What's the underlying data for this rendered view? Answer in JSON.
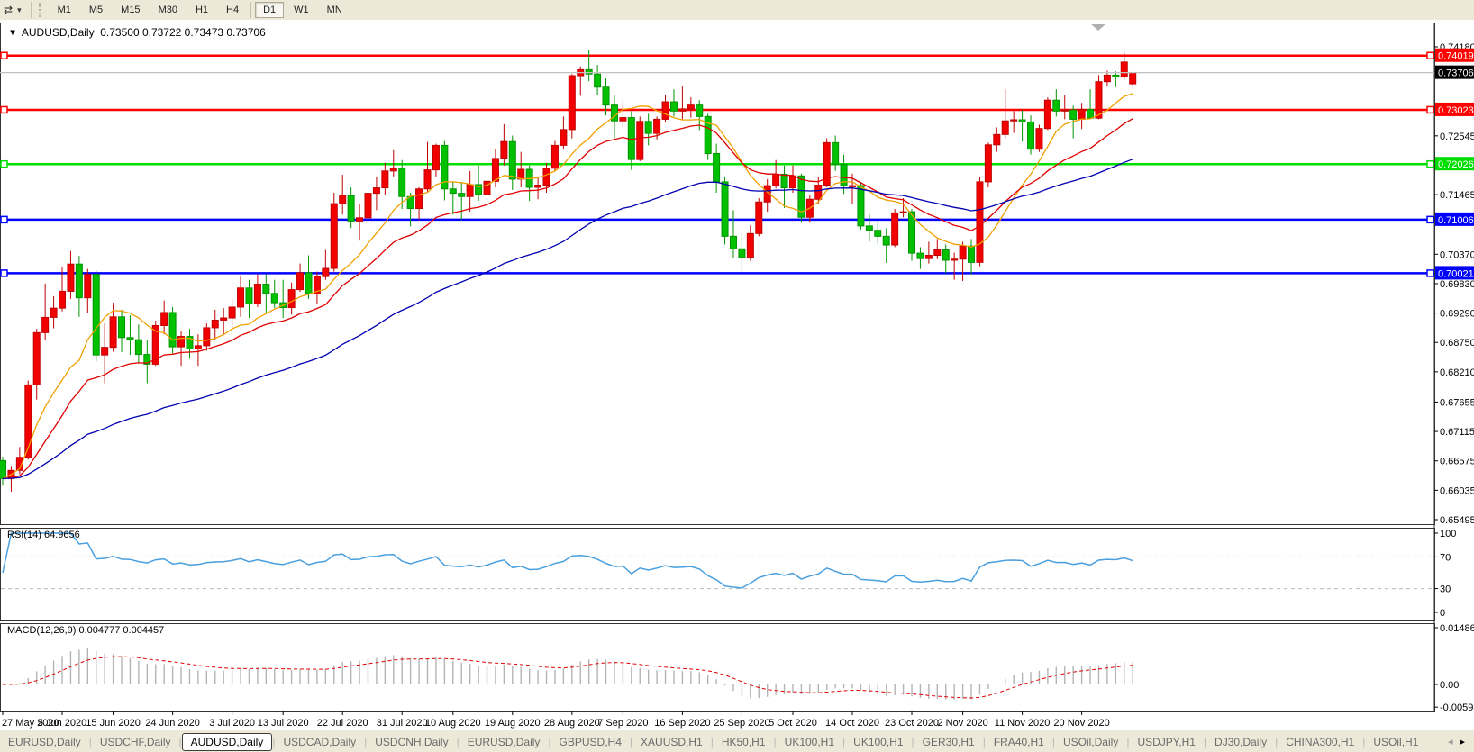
{
  "toolbar": {
    "cursor_tool": "⇄",
    "dropdown": "▾",
    "timeframes": [
      {
        "label": "M1",
        "active": false
      },
      {
        "label": "M5",
        "active": false
      },
      {
        "label": "M15",
        "active": false
      },
      {
        "label": "M30",
        "active": false
      },
      {
        "label": "H1",
        "active": false
      },
      {
        "label": "H4",
        "active": false
      },
      {
        "label": "D1",
        "active": true
      },
      {
        "label": "W1",
        "active": false
      },
      {
        "label": "MN",
        "active": false
      }
    ]
  },
  "chart": {
    "title_triangle": "▼",
    "title_text": "AUDUSD,Daily  0.73500 0.73722 0.73473 0.73706",
    "rsi_label": "RSI(14) 64.9656",
    "macd_label": "MACD(12,26,9) 0.004777 0.004457"
  },
  "colors": {
    "bull_body": "#f20000",
    "bull_wick": "#c00000",
    "bear_body": "#00c000",
    "bear_wick": "#009400",
    "ma_fast": "#f0a000",
    "ma_mid": "#e00000",
    "ma_slow": "#0000b0",
    "level_red": "#ff0000",
    "level_green": "#00dd00",
    "level_blue": "#0000ff",
    "current_line": "#c0c0c0",
    "current_label_bg": "#000000",
    "rsi_line": "#4a9fdf",
    "rsi_grid": "#b8b8b8",
    "macd_hist": "#b4b4b4",
    "macd_signal": "#e00000",
    "panel_border": "#333333"
  },
  "chart_data": {
    "type": "candlestick",
    "symbol": "AUDUSD",
    "timeframe": "Daily",
    "ohlc_current": {
      "open": 0.735,
      "high": 0.73722,
      "low": 0.73473,
      "close": 0.73706
    },
    "current_price": "0.73706",
    "ylim": [
      0.65495,
      0.7418
    ],
    "price_ticks": [
      "0.74180",
      "0.72545",
      "0.71465",
      "0.70370",
      "0.69830",
      "0.69290",
      "0.68750",
      "0.68210",
      "0.67655",
      "0.67115",
      "0.66575",
      "0.66035",
      "0.65495"
    ],
    "levels": [
      {
        "value": "0.74019",
        "price": 0.74019,
        "color": "#ff0000",
        "text_color": "#ffffff",
        "role": "resistance"
      },
      {
        "value": "0.73023",
        "price": 0.73023,
        "color": "#ff0000",
        "text_color": "#ffffff",
        "role": "resistance"
      },
      {
        "value": "0.72026",
        "price": 0.72026,
        "color": "#00dd00",
        "text_color": "#ffffff",
        "role": "support"
      },
      {
        "value": "0.71006",
        "price": 0.71006,
        "color": "#0000ff",
        "text_color": "#ffffff",
        "role": "support"
      },
      {
        "value": "0.70021",
        "price": 0.70021,
        "color": "#0000ff",
        "text_color": "#ffffff",
        "role": "support"
      }
    ],
    "date_labels": [
      {
        "label": "27 May 2020",
        "index": 0
      },
      {
        "label": "5 Jun 2020",
        "index": 7
      },
      {
        "label": "15 Jun 2020",
        "index": 13
      },
      {
        "label": "24 Jun 2020",
        "index": 20
      },
      {
        "label": "3 Jul 2020",
        "index": 27
      },
      {
        "label": "13 Jul 2020",
        "index": 33
      },
      {
        "label": "22 Jul 2020",
        "index": 40
      },
      {
        "label": "31 Jul 2020",
        "index": 47
      },
      {
        "label": "10 Aug 2020",
        "index": 53
      },
      {
        "label": "19 Aug 2020",
        "index": 60
      },
      {
        "label": "28 Aug 2020",
        "index": 67
      },
      {
        "label": "7 Sep 2020",
        "index": 73
      },
      {
        "label": "16 Sep 2020",
        "index": 80
      },
      {
        "label": "25 Sep 2020",
        "index": 87
      },
      {
        "label": "5 Oct 2020",
        "index": 93
      },
      {
        "label": "14 Oct 2020",
        "index": 100
      },
      {
        "label": "23 Oct 2020",
        "index": 107
      },
      {
        "label": "2 Nov 2020",
        "index": 113
      },
      {
        "label": "11 Nov 2020",
        "index": 120
      },
      {
        "label": "20 Nov 2020",
        "index": 127
      }
    ],
    "moving_averages": [
      {
        "name": "fast",
        "period": 10,
        "method": "sma",
        "color": "#f0a000"
      },
      {
        "name": "mid",
        "period": 20,
        "method": "ema",
        "color": "#e00000"
      },
      {
        "name": "slow",
        "period": 55,
        "method": "ema",
        "color": "#0000b0"
      }
    ],
    "rsi": {
      "period": 14,
      "current": 64.9656,
      "levels": [
        70,
        30
      ],
      "range": [
        0,
        100
      ],
      "axis_labels": [
        "100",
        "70",
        "30",
        "0"
      ]
    },
    "macd": {
      "fast": 12,
      "slow": 26,
      "signal": 9,
      "current_main": 0.004777,
      "current_signal": 0.004457,
      "axis_labels": [
        "0.014861",
        "0.00",
        "-0.005938"
      ],
      "axis_values": [
        0.014861,
        0.0,
        -0.005938
      ]
    },
    "candles": [
      [
        0.6658,
        0.6665,
        0.6612,
        0.6625
      ],
      [
        0.6625,
        0.6648,
        0.6601,
        0.664
      ],
      [
        0.664,
        0.6683,
        0.6633,
        0.6664
      ],
      [
        0.6664,
        0.6805,
        0.666,
        0.6797
      ],
      [
        0.6797,
        0.69,
        0.677,
        0.6893
      ],
      [
        0.6893,
        0.6983,
        0.688,
        0.6921
      ],
      [
        0.6921,
        0.696,
        0.6901,
        0.6938
      ],
      [
        0.6938,
        0.7013,
        0.6932,
        0.6969
      ],
      [
        0.6969,
        0.7043,
        0.6955,
        0.7019
      ],
      [
        0.7019,
        0.7034,
        0.6922,
        0.6957
      ],
      [
        0.6957,
        0.701,
        0.693,
        0.7
      ],
      [
        0.7,
        0.7007,
        0.684,
        0.6852
      ],
      [
        0.6852,
        0.691,
        0.68,
        0.6866
      ],
      [
        0.6866,
        0.6948,
        0.6858,
        0.6922
      ],
      [
        0.6922,
        0.6935,
        0.6857,
        0.6884
      ],
      [
        0.6884,
        0.6925,
        0.6852,
        0.688
      ],
      [
        0.688,
        0.6908,
        0.6838,
        0.6853
      ],
      [
        0.6853,
        0.688,
        0.68,
        0.6835
      ],
      [
        0.6835,
        0.6915,
        0.6832,
        0.6906
      ],
      [
        0.6906,
        0.6952,
        0.689,
        0.693
      ],
      [
        0.693,
        0.694,
        0.6855,
        0.6867
      ],
      [
        0.6867,
        0.6895,
        0.6832,
        0.6886
      ],
      [
        0.6886,
        0.69,
        0.6845,
        0.6863
      ],
      [
        0.6863,
        0.689,
        0.6832,
        0.6869
      ],
      [
        0.6869,
        0.691,
        0.686,
        0.6902
      ],
      [
        0.6902,
        0.6935,
        0.688,
        0.6916
      ],
      [
        0.6916,
        0.6938,
        0.689,
        0.692
      ],
      [
        0.692,
        0.6955,
        0.6901,
        0.694
      ],
      [
        0.694,
        0.6998,
        0.6922,
        0.6975
      ],
      [
        0.6975,
        0.699,
        0.692,
        0.6946
      ],
      [
        0.6946,
        0.7,
        0.694,
        0.6982
      ],
      [
        0.6982,
        0.7,
        0.693,
        0.6965
      ],
      [
        0.6965,
        0.699,
        0.6938,
        0.6948
      ],
      [
        0.6948,
        0.699,
        0.692,
        0.6939
      ],
      [
        0.6939,
        0.6985,
        0.6926,
        0.6972
      ],
      [
        0.6972,
        0.702,
        0.6968,
        0.7003
      ],
      [
        0.7003,
        0.7035,
        0.6955,
        0.6964
      ],
      [
        0.6964,
        0.7005,
        0.6945,
        0.6996
      ],
      [
        0.6996,
        0.7045,
        0.699,
        0.7011
      ],
      [
        0.7011,
        0.715,
        0.7005,
        0.713
      ],
      [
        0.713,
        0.7183,
        0.711,
        0.7145
      ],
      [
        0.7145,
        0.716,
        0.7085,
        0.7098
      ],
      [
        0.7098,
        0.713,
        0.7062,
        0.7104
      ],
      [
        0.7104,
        0.7162,
        0.71,
        0.7149
      ],
      [
        0.7149,
        0.718,
        0.7118,
        0.7159
      ],
      [
        0.7159,
        0.7205,
        0.7145,
        0.719
      ],
      [
        0.719,
        0.7228,
        0.718,
        0.7195
      ],
      [
        0.7195,
        0.721,
        0.712,
        0.7143
      ],
      [
        0.7143,
        0.715,
        0.7088,
        0.7121
      ],
      [
        0.7121,
        0.716,
        0.71,
        0.7157
      ],
      [
        0.7157,
        0.7243,
        0.715,
        0.7192
      ],
      [
        0.7192,
        0.724,
        0.718,
        0.7237
      ],
      [
        0.7237,
        0.7245,
        0.7136,
        0.7157
      ],
      [
        0.7157,
        0.717,
        0.711,
        0.7149
      ],
      [
        0.7149,
        0.717,
        0.71,
        0.7143
      ],
      [
        0.7143,
        0.719,
        0.7115,
        0.7165
      ],
      [
        0.7165,
        0.72,
        0.7135,
        0.7147
      ],
      [
        0.7147,
        0.7185,
        0.713,
        0.7171
      ],
      [
        0.7171,
        0.723,
        0.716,
        0.7213
      ],
      [
        0.7213,
        0.7276,
        0.72,
        0.7244
      ],
      [
        0.7244,
        0.7255,
        0.7155,
        0.7175
      ],
      [
        0.7175,
        0.7225,
        0.716,
        0.7193
      ],
      [
        0.7193,
        0.72,
        0.7135,
        0.716
      ],
      [
        0.716,
        0.718,
        0.7138,
        0.7164
      ],
      [
        0.7164,
        0.7205,
        0.715,
        0.7195
      ],
      [
        0.7195,
        0.7245,
        0.719,
        0.7237
      ],
      [
        0.7237,
        0.729,
        0.723,
        0.7266
      ],
      [
        0.7266,
        0.7368,
        0.725,
        0.7365
      ],
      [
        0.7365,
        0.7382,
        0.7328,
        0.7376
      ],
      [
        0.7376,
        0.7413,
        0.7355,
        0.7368
      ],
      [
        0.7368,
        0.7385,
        0.733,
        0.7344
      ],
      [
        0.7344,
        0.736,
        0.7292,
        0.7311
      ],
      [
        0.7311,
        0.733,
        0.725,
        0.7282
      ],
      [
        0.7282,
        0.732,
        0.727,
        0.7288
      ],
      [
        0.7288,
        0.73,
        0.7192,
        0.7211
      ],
      [
        0.7211,
        0.729,
        0.7208,
        0.7281
      ],
      [
        0.7281,
        0.7295,
        0.7237,
        0.7259
      ],
      [
        0.7259,
        0.729,
        0.7248,
        0.7285
      ],
      [
        0.7285,
        0.733,
        0.728,
        0.7317
      ],
      [
        0.7317,
        0.734,
        0.729,
        0.73
      ],
      [
        0.73,
        0.7345,
        0.7285,
        0.7304
      ],
      [
        0.7304,
        0.7325,
        0.7288,
        0.7311
      ],
      [
        0.7311,
        0.732,
        0.7265,
        0.729
      ],
      [
        0.729,
        0.7295,
        0.721,
        0.7222
      ],
      [
        0.7222,
        0.724,
        0.715,
        0.717
      ],
      [
        0.717,
        0.718,
        0.7055,
        0.707
      ],
      [
        0.707,
        0.7118,
        0.703,
        0.7047
      ],
      [
        0.7047,
        0.708,
        0.7005,
        0.7031
      ],
      [
        0.7031,
        0.709,
        0.7025,
        0.7075
      ],
      [
        0.7075,
        0.714,
        0.707,
        0.7133
      ],
      [
        0.7133,
        0.7175,
        0.7115,
        0.7163
      ],
      [
        0.7163,
        0.721,
        0.7158,
        0.7184
      ],
      [
        0.7184,
        0.72,
        0.7122,
        0.7159
      ],
      [
        0.7159,
        0.72,
        0.715,
        0.7181
      ],
      [
        0.7181,
        0.7185,
        0.7095,
        0.7105
      ],
      [
        0.7105,
        0.7145,
        0.7095,
        0.7138
      ],
      [
        0.7138,
        0.718,
        0.713,
        0.7164
      ],
      [
        0.7164,
        0.725,
        0.716,
        0.7242
      ],
      [
        0.7242,
        0.7255,
        0.719,
        0.7202
      ],
      [
        0.7202,
        0.722,
        0.7148,
        0.7163
      ],
      [
        0.7163,
        0.7185,
        0.713,
        0.7163
      ],
      [
        0.7163,
        0.717,
        0.7082,
        0.7089
      ],
      [
        0.7089,
        0.711,
        0.706,
        0.7081
      ],
      [
        0.7081,
        0.7099,
        0.7055,
        0.707
      ],
      [
        0.707,
        0.7085,
        0.7021,
        0.7054
      ],
      [
        0.7054,
        0.712,
        0.705,
        0.7113
      ],
      [
        0.7113,
        0.714,
        0.7105,
        0.7115
      ],
      [
        0.7115,
        0.712,
        0.7025,
        0.7039
      ],
      [
        0.7039,
        0.705,
        0.701,
        0.7029
      ],
      [
        0.7029,
        0.706,
        0.702,
        0.7035
      ],
      [
        0.7035,
        0.7065,
        0.7028,
        0.7045
      ],
      [
        0.7045,
        0.7055,
        0.7002,
        0.7026
      ],
      [
        0.7026,
        0.704,
        0.699,
        0.7028
      ],
      [
        0.7028,
        0.706,
        0.6988,
        0.7052
      ],
      [
        0.7052,
        0.7065,
        0.7,
        0.7022
      ],
      [
        0.7022,
        0.718,
        0.7015,
        0.717
      ],
      [
        0.717,
        0.7242,
        0.716,
        0.7238
      ],
      [
        0.7238,
        0.727,
        0.7225,
        0.7257
      ],
      [
        0.7257,
        0.734,
        0.725,
        0.7282
      ],
      [
        0.7282,
        0.73,
        0.726,
        0.7284
      ],
      [
        0.7284,
        0.7302,
        0.7244,
        0.728
      ],
      [
        0.728,
        0.7292,
        0.722,
        0.723
      ],
      [
        0.723,
        0.7275,
        0.7225,
        0.7268
      ],
      [
        0.7268,
        0.7325,
        0.7265,
        0.732
      ],
      [
        0.732,
        0.734,
        0.729,
        0.73
      ],
      [
        0.73,
        0.733,
        0.7285,
        0.7302
      ],
      [
        0.7302,
        0.731,
        0.725,
        0.7285
      ],
      [
        0.7285,
        0.7315,
        0.7267,
        0.7303
      ],
      [
        0.7303,
        0.734,
        0.7287,
        0.7287
      ],
      [
        0.7287,
        0.7366,
        0.7285,
        0.7354
      ],
      [
        0.7354,
        0.7374,
        0.7345,
        0.7366
      ],
      [
        0.7366,
        0.7373,
        0.7344,
        0.7363
      ],
      [
        0.7363,
        0.7408,
        0.7358,
        0.739
      ],
      [
        0.735,
        0.73722,
        0.73473,
        0.73706
      ]
    ]
  },
  "tabs": {
    "items": [
      {
        "label": "EURUSD,Daily",
        "active": false
      },
      {
        "label": "USDCHF,Daily",
        "active": false
      },
      {
        "label": "AUDUSD,Daily",
        "active": true
      },
      {
        "label": "USDCAD,Daily",
        "active": false
      },
      {
        "label": "USDCNH,Daily",
        "active": false
      },
      {
        "label": "EURUSD,Daily",
        "active": false
      },
      {
        "label": "GBPUSD,H4",
        "active": false
      },
      {
        "label": "XAUUSD,H1",
        "active": false
      },
      {
        "label": "HK50,H1",
        "active": false
      },
      {
        "label": "UK100,H1",
        "active": false
      },
      {
        "label": "UK100,H1",
        "active": false
      },
      {
        "label": "GER30,H1",
        "active": false
      },
      {
        "label": "FRA40,H1",
        "active": false
      },
      {
        "label": "USOil,Daily",
        "active": false
      },
      {
        "label": "USDJPY,H1",
        "active": false
      },
      {
        "label": "DJ30,Daily",
        "active": false
      },
      {
        "label": "CHINA300,H1",
        "active": false
      },
      {
        "label": "USOil,H1",
        "active": false
      }
    ],
    "scroll_left": "◂",
    "scroll_right": "▸"
  }
}
